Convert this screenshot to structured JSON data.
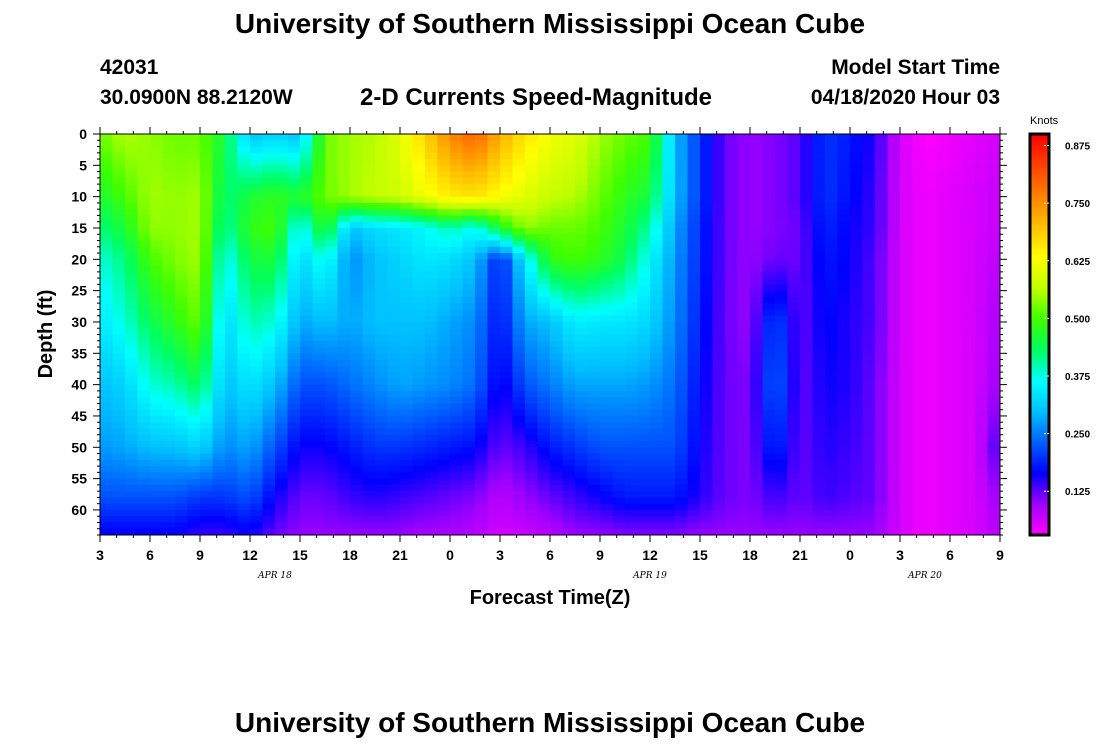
{
  "header": {
    "title_top": "University of Southern Mississippi Ocean Cube",
    "title_bottom": "University of Southern Mississippi Ocean Cube",
    "station_id": "42031",
    "station_coords": "30.0900N 88.2120W",
    "chart_title": "2-D Currents Speed-Magnitude",
    "model_start_label": "Model Start Time",
    "model_start_value": "04/18/2020 Hour 03"
  },
  "chart_data": {
    "type": "heatmap",
    "title": "2-D Currents Speed-Magnitude",
    "xlabel": "Forecast Time(Z)",
    "ylabel": "Depth (ft)",
    "x_ticks": [
      "3",
      "6",
      "9",
      "12",
      "15",
      "18",
      "21",
      "0",
      "3",
      "6",
      "9",
      "12",
      "15",
      "18",
      "21",
      "0",
      "3",
      "6",
      "9"
    ],
    "x_tick_hours": [
      0,
      3,
      6,
      9,
      12,
      15,
      18,
      21,
      24,
      27,
      30,
      33,
      36,
      39,
      42,
      45,
      48,
      51,
      54
    ],
    "xlim_hours": [
      0,
      54
    ],
    "date_labels": [
      {
        "text": "APR 18",
        "hour": 10.5
      },
      {
        "text": "APR 19",
        "hour": 33
      },
      {
        "text": "APR 20",
        "hour": 49.5
      }
    ],
    "y_ticks": [
      "0",
      "5",
      "10",
      "15",
      "20",
      "25",
      "30",
      "35",
      "40",
      "45",
      "50",
      "55",
      "60"
    ],
    "y_tick_values": [
      0,
      5,
      10,
      15,
      20,
      25,
      30,
      35,
      40,
      45,
      50,
      55,
      60
    ],
    "ylim": [
      0,
      64
    ],
    "y_inverted": true,
    "colorbar": {
      "unit": "Knots",
      "labels": [
        "0.875",
        "0.750",
        "0.625",
        "0.500",
        "0.375",
        "0.250",
        "0.125"
      ],
      "label_values": [
        0.875,
        0.75,
        0.625,
        0.5,
        0.375,
        0.25,
        0.125
      ],
      "range": [
        0.03,
        0.9
      ],
      "colors": [
        "#ff00ff",
        "#a000ff",
        "#0000ff",
        "#0060ff",
        "#00c0ff",
        "#00ffff",
        "#00ff60",
        "#40ff00",
        "#c0ff00",
        "#ffff00",
        "#ffc000",
        "#ff8000",
        "#ff4000",
        "#ff0000"
      ]
    },
    "depths": [
      0,
      10,
      15,
      20,
      30,
      40,
      50,
      58,
      64
    ],
    "hours": [
      0,
      1.5,
      3,
      4.5,
      6,
      7.5,
      9,
      10.5,
      12,
      13.5,
      15,
      16.5,
      18,
      19.5,
      21,
      22.5,
      24,
      25.5,
      27,
      28.5,
      30,
      31.5,
      33,
      34.5,
      36,
      37.5,
      39,
      40.5,
      42,
      43.5,
      45,
      46.5,
      48,
      49.5,
      51,
      52.5,
      54
    ],
    "speed_knots": [
      [
        0.52,
        0.56,
        0.54,
        0.52,
        0.52,
        0.45,
        0.3,
        0.32,
        0.3,
        0.52,
        0.55,
        0.56,
        0.6,
        0.68,
        0.76,
        0.8,
        0.72,
        0.66,
        0.62,
        0.6,
        0.55,
        0.52,
        0.5,
        0.3,
        0.2,
        0.12,
        0.1,
        0.11,
        0.13,
        0.2,
        0.18,
        0.15,
        0.06,
        0.03,
        0.04,
        0.05,
        0.06
      ],
      [
        0.46,
        0.5,
        0.55,
        0.54,
        0.55,
        0.42,
        0.46,
        0.48,
        0.46,
        0.52,
        0.55,
        0.57,
        0.58,
        0.62,
        0.65,
        0.66,
        0.63,
        0.6,
        0.57,
        0.56,
        0.52,
        0.48,
        0.45,
        0.3,
        0.2,
        0.12,
        0.1,
        0.11,
        0.13,
        0.2,
        0.17,
        0.14,
        0.06,
        0.04,
        0.05,
        0.06,
        0.07
      ],
      [
        0.42,
        0.46,
        0.54,
        0.54,
        0.55,
        0.4,
        0.48,
        0.5,
        0.35,
        0.48,
        0.3,
        0.33,
        0.34,
        0.36,
        0.4,
        0.36,
        0.46,
        0.54,
        0.52,
        0.52,
        0.5,
        0.46,
        0.4,
        0.28,
        0.19,
        0.12,
        0.1,
        0.11,
        0.12,
        0.19,
        0.16,
        0.14,
        0.06,
        0.04,
        0.05,
        0.06,
        0.07
      ],
      [
        0.38,
        0.42,
        0.5,
        0.53,
        0.55,
        0.36,
        0.45,
        0.46,
        0.32,
        0.38,
        0.26,
        0.3,
        0.32,
        0.34,
        0.33,
        0.3,
        0.18,
        0.34,
        0.48,
        0.5,
        0.48,
        0.44,
        0.36,
        0.27,
        0.19,
        0.12,
        0.1,
        0.12,
        0.12,
        0.18,
        0.16,
        0.13,
        0.06,
        0.04,
        0.05,
        0.06,
        0.08
      ],
      [
        0.34,
        0.38,
        0.44,
        0.48,
        0.52,
        0.32,
        0.4,
        0.38,
        0.28,
        0.3,
        0.28,
        0.3,
        0.3,
        0.3,
        0.28,
        0.26,
        0.17,
        0.28,
        0.3,
        0.35,
        0.34,
        0.34,
        0.32,
        0.26,
        0.18,
        0.12,
        0.1,
        0.22,
        0.12,
        0.17,
        0.15,
        0.13,
        0.06,
        0.04,
        0.05,
        0.06,
        0.09
      ],
      [
        0.3,
        0.32,
        0.38,
        0.4,
        0.44,
        0.3,
        0.34,
        0.3,
        0.22,
        0.22,
        0.24,
        0.26,
        0.28,
        0.27,
        0.26,
        0.24,
        0.15,
        0.22,
        0.25,
        0.28,
        0.28,
        0.28,
        0.27,
        0.24,
        0.17,
        0.12,
        0.11,
        0.24,
        0.12,
        0.16,
        0.15,
        0.12,
        0.06,
        0.04,
        0.05,
        0.06,
        0.1
      ],
      [
        0.27,
        0.28,
        0.3,
        0.3,
        0.32,
        0.26,
        0.28,
        0.22,
        0.16,
        0.16,
        0.18,
        0.2,
        0.2,
        0.19,
        0.18,
        0.17,
        0.12,
        0.14,
        0.18,
        0.2,
        0.22,
        0.22,
        0.22,
        0.22,
        0.16,
        0.12,
        0.11,
        0.2,
        0.12,
        0.15,
        0.14,
        0.12,
        0.06,
        0.04,
        0.05,
        0.06,
        0.14
      ],
      [
        0.22,
        0.22,
        0.22,
        0.22,
        0.2,
        0.2,
        0.22,
        0.16,
        0.12,
        0.12,
        0.14,
        0.15,
        0.14,
        0.13,
        0.12,
        0.11,
        0.08,
        0.1,
        0.12,
        0.14,
        0.16,
        0.18,
        0.18,
        0.18,
        0.15,
        0.12,
        0.11,
        0.14,
        0.12,
        0.14,
        0.13,
        0.12,
        0.06,
        0.04,
        0.05,
        0.06,
        0.1
      ],
      [
        0.16,
        0.16,
        0.16,
        0.16,
        0.14,
        0.14,
        0.16,
        0.12,
        0.1,
        0.1,
        0.1,
        0.1,
        0.1,
        0.09,
        0.09,
        0.08,
        0.06,
        0.07,
        0.08,
        0.1,
        0.1,
        0.11,
        0.11,
        0.11,
        0.1,
        0.1,
        0.1,
        0.1,
        0.1,
        0.1,
        0.1,
        0.1,
        0.06,
        0.04,
        0.05,
        0.06,
        0.08
      ]
    ]
  }
}
